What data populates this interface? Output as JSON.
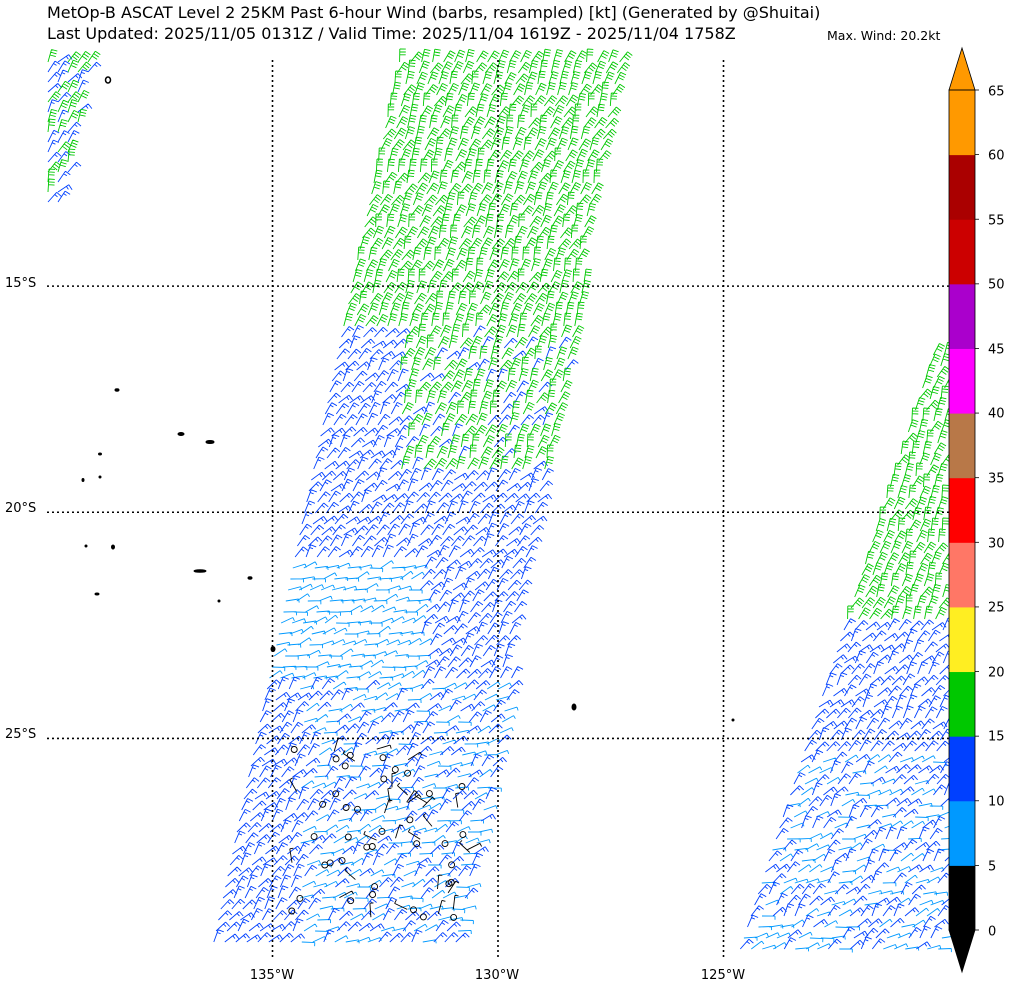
{
  "title": {
    "line1": "MetOp-B ASCAT Level 2 25KM Past 6-hour Wind (barbs, resampled) [kt] (Generated by @Shuitai)",
    "line2": "Last Updated: 2025/11/05 0131Z / Valid Time: 2025/11/04 1619Z - 2025/11/04 1758Z",
    "max_wind": "Max. Wind: 20.2kt"
  },
  "axes": {
    "lat_labels": [
      "15°S",
      "20°S",
      "25°S"
    ],
    "lon_labels": [
      "135°W",
      "130°W",
      "125°W"
    ]
  },
  "colorbar": {
    "levels": [
      "0",
      "5",
      "10",
      "15",
      "20",
      "25",
      "30",
      "35",
      "40",
      "45",
      "50",
      "55",
      "60",
      "65"
    ],
    "colors": [
      "#000000",
      "#0099ff",
      "#0040ff",
      "#00c800",
      "#ffee22",
      "#ff7766",
      "#ff0000",
      "#b87848",
      "#ff00ff",
      "#aa00cc",
      "#cc0000",
      "#aa0000",
      "#ff9900"
    ]
  },
  "map_data": {
    "bounds": {
      "lon_min": -140,
      "lon_max": -120,
      "lat_min": -29.9,
      "lat_max": -10
    },
    "grid_lats": [
      -15,
      -20,
      -25
    ],
    "grid_lons": [
      -135,
      -130,
      -125
    ],
    "max_wind_kt": 20.2
  }
}
